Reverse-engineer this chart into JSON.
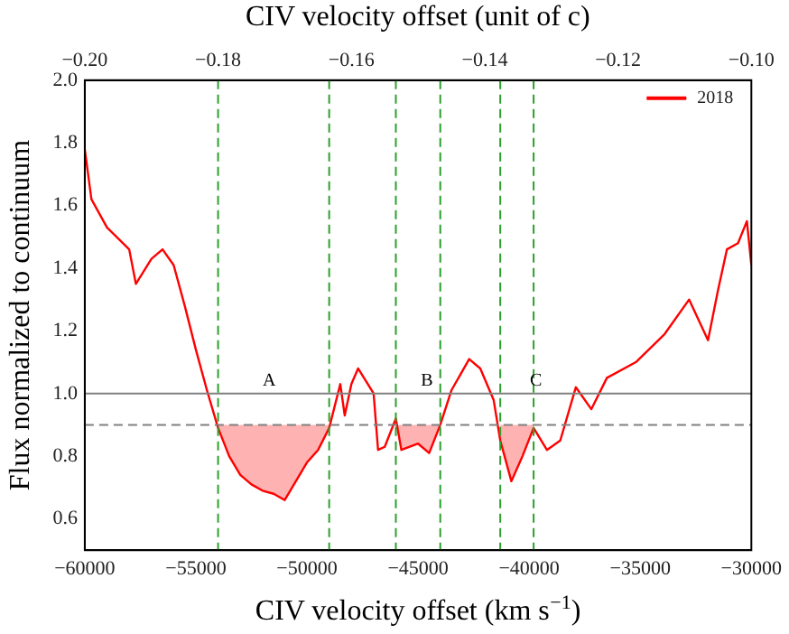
{
  "chart_data": {
    "type": "line",
    "xlabel": "CIV velocity offset (km s$^{−1}$)",
    "x2label": "CIV velocity offset (unit of c)",
    "ylabel": "Flux normalized to continuum",
    "xlim": [
      -60000,
      -30000
    ],
    "xticks": [
      {
        "value": -60000,
        "label": "−60000"
      },
      {
        "value": -55000,
        "label": "−55000"
      },
      {
        "value": -50000,
        "label": "−50000"
      },
      {
        "value": -45000,
        "label": "−45000"
      },
      {
        "value": -40000,
        "label": "−40000"
      },
      {
        "value": -35000,
        "label": "−35000"
      },
      {
        "value": -30000,
        "label": "−30000"
      }
    ],
    "x2lim": [
      -0.2,
      -0.1
    ],
    "x2ticks": [
      {
        "value": -0.2,
        "label": "−0.20"
      },
      {
        "value": -0.18,
        "label": "−0.18"
      },
      {
        "value": -0.16,
        "label": "−0.16"
      },
      {
        "value": -0.14,
        "label": "−0.14"
      },
      {
        "value": -0.12,
        "label": "−0.12"
      },
      {
        "value": -0.1,
        "label": "−0.10"
      }
    ],
    "ylim": [
      0.5,
      2.0
    ],
    "yticks": [
      {
        "value": 0.6,
        "label": "0.6"
      },
      {
        "value": 0.8,
        "label": "0.8"
      },
      {
        "value": 1.0,
        "label": "1.0"
      },
      {
        "value": 1.2,
        "label": "1.2"
      },
      {
        "value": 1.4,
        "label": "1.4"
      },
      {
        "value": 1.6,
        "label": "1.6"
      },
      {
        "value": 1.8,
        "label": "1.8"
      },
      {
        "value": 2.0,
        "label": "2.0"
      }
    ],
    "grid": false,
    "legend": "top right",
    "series": [
      {
        "name": "2018",
        "color": "#ff0000",
        "x": [
          -60000,
          -59700,
          -59000,
          -58000,
          -57700,
          -57000,
          -56500,
          -56000,
          -55500,
          -55000,
          -54500,
          -54000,
          -53500,
          -53000,
          -52500,
          -52000,
          -51500,
          -51000,
          -50500,
          -50000,
          -49500,
          -49000,
          -48500,
          -48300,
          -48000,
          -47700,
          -47000,
          -46800,
          -46500,
          -46000,
          -45750,
          -45000,
          -44500,
          -44000,
          -43500,
          -42700,
          -42200,
          -41600,
          -41300,
          -40800,
          -40300,
          -39800,
          -39200,
          -38600,
          -37900,
          -37200,
          -36500,
          -35200,
          -33900,
          -32800,
          -31950,
          -31500,
          -31100,
          -30600,
          -30200,
          -30000
        ],
        "values": [
          1.78,
          1.62,
          1.53,
          1.46,
          1.35,
          1.43,
          1.46,
          1.41,
          1.28,
          1.14,
          1.01,
          0.89,
          0.8,
          0.74,
          0.71,
          0.69,
          0.68,
          0.66,
          0.72,
          0.78,
          0.82,
          0.89,
          1.03,
          0.93,
          1.03,
          1.08,
          1.0,
          0.82,
          0.83,
          0.92,
          0.82,
          0.84,
          0.81,
          0.9,
          1.01,
          1.11,
          1.08,
          0.98,
          0.85,
          0.72,
          0.8,
          0.89,
          0.82,
          0.85,
          1.02,
          0.95,
          1.05,
          1.1,
          1.19,
          1.3,
          1.17,
          1.33,
          1.46,
          1.48,
          1.55,
          1.41
        ],
        "lower": [
          null,
          null,
          null,
          null,
          null,
          null,
          null,
          null,
          null,
          null,
          null,
          0.89,
          0.8,
          0.74,
          0.71,
          0.69,
          0.68,
          0.66,
          0.72,
          0.78,
          0.82,
          0.89,
          null,
          null,
          null,
          null,
          null,
          null,
          null,
          0.9,
          0.82,
          0.84,
          0.81,
          0.9,
          null,
          null,
          null,
          null,
          0.85,
          0.72,
          0.8,
          0.89,
          null,
          null,
          null,
          null,
          null,
          null,
          null,
          null,
          null,
          null,
          null,
          null,
          null,
          null
        ],
        "upper": [
          null,
          null,
          null,
          null,
          null,
          null,
          null,
          null,
          null,
          null,
          null,
          0.9,
          0.9,
          0.9,
          0.9,
          0.9,
          0.9,
          0.9,
          0.9,
          0.9,
          0.9,
          0.9,
          null,
          null,
          null,
          null,
          null,
          null,
          null,
          0.9,
          0.9,
          0.9,
          0.9,
          0.9,
          null,
          null,
          null,
          null,
          0.9,
          0.9,
          0.9,
          0.9,
          null,
          null,
          null,
          null,
          null,
          null,
          null,
          null,
          null,
          null,
          null,
          null,
          null,
          null
        ]
      }
    ],
    "ref_lines": [
      {
        "axis": "y",
        "value": 1.0,
        "color": "#808080",
        "line_style": "solid"
      },
      {
        "axis": "y",
        "value": 0.9,
        "color": "#808080",
        "line_style": "dashed"
      },
      {
        "axis": "x",
        "value": -54000,
        "color": "#2ca02c",
        "line_style": "dashed"
      },
      {
        "axis": "x",
        "value": -49000,
        "color": "#2ca02c",
        "line_style": "dashed"
      },
      {
        "axis": "x",
        "value": -46000,
        "color": "#2ca02c",
        "line_style": "dashed"
      },
      {
        "axis": "x",
        "value": -44000,
        "color": "#2ca02c",
        "line_style": "dashed"
      },
      {
        "axis": "x",
        "value": -41300,
        "color": "#2ca02c",
        "line_style": "dashed"
      },
      {
        "axis": "x",
        "value": -39800,
        "color": "#2ca02c",
        "line_style": "dashed"
      }
    ],
    "annotations": [
      {
        "text": "A",
        "x": -51700,
        "y": 1.0
      },
      {
        "text": "B",
        "x": -44600,
        "y": 1.0
      },
      {
        "text": "C",
        "x": -39700,
        "y": 1.0
      }
    ]
  }
}
